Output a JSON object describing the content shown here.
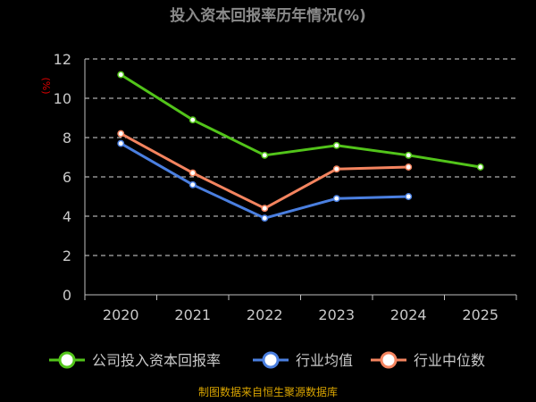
{
  "chart_data": {
    "type": "line",
    "title": "投入资本回报率历年情况(%)",
    "ylabel": "(%)",
    "categories": [
      "2020",
      "2021",
      "2022",
      "2023",
      "2024",
      "2025"
    ],
    "ylim": [
      0,
      12
    ],
    "yticks": [
      0,
      2,
      4,
      6,
      8,
      10,
      12
    ],
    "grid": true,
    "legend_position": "bottom",
    "series": [
      {
        "name": "公司投入资本回报率",
        "color": "#52c41a",
        "values": [
          11.2,
          8.9,
          7.1,
          7.6,
          7.1,
          6.5
        ]
      },
      {
        "name": "行业均值",
        "color": "#4a7fe0",
        "values": [
          7.7,
          5.6,
          3.9,
          4.9,
          5.0,
          null
        ]
      },
      {
        "name": "行业中位数",
        "color": "#f4845f",
        "values": [
          8.2,
          6.2,
          4.4,
          6.4,
          6.5,
          null
        ]
      }
    ],
    "source": "制图数据来自恒生聚源数据库"
  },
  "colors": {
    "background": "#000000",
    "title": "#8a8a8a",
    "axis_label": "#e00000",
    "tick_text": "#c8c8c8",
    "grid": "#d9d9d9",
    "axis": "#bfbfbf",
    "source_text": "#d9a400"
  }
}
